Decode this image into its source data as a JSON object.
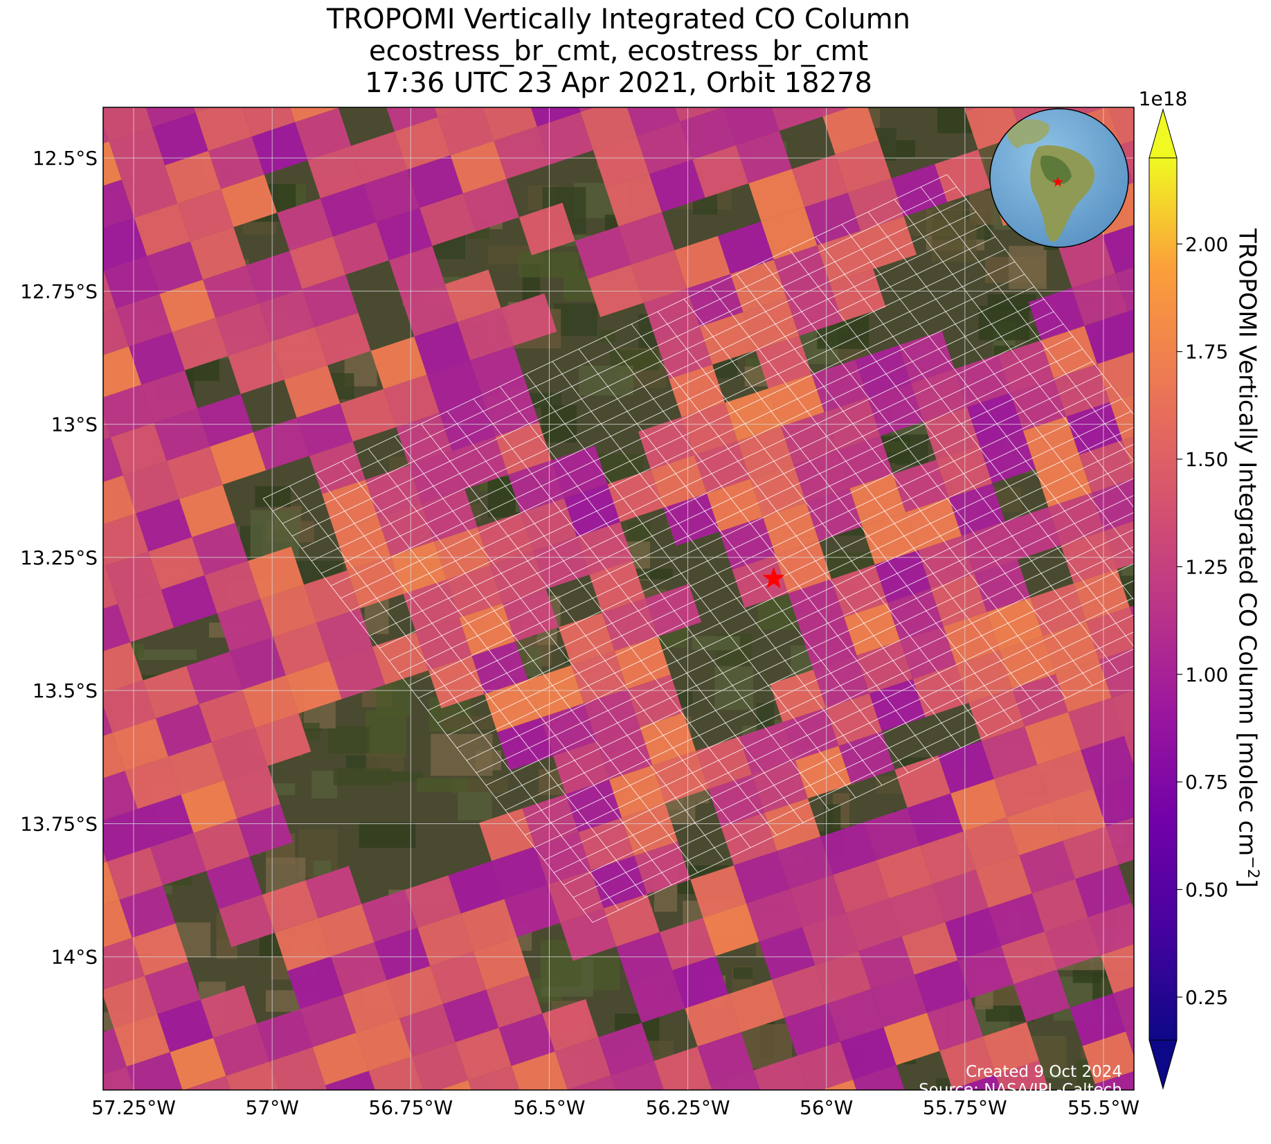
{
  "title": {
    "line1": "TROPOMI Vertically Integrated CO Column",
    "line2": "ecostress_br_cmt, ecostress_br_cmt",
    "line3": "17:36 UTC 23 Apr 2021, Orbit 18278"
  },
  "map": {
    "lon_range": [
      -57.305,
      -55.445
    ],
    "lat_range": [
      -12.405,
      -14.25
    ],
    "lon_ticks": [
      {
        "value": -57.25,
        "label": "57.25°W"
      },
      {
        "value": -57.0,
        "label": "57°W"
      },
      {
        "value": -56.75,
        "label": "56.75°W"
      },
      {
        "value": -56.5,
        "label": "56.5°W"
      },
      {
        "value": -56.25,
        "label": "56.25°W"
      },
      {
        "value": -56.0,
        "label": "56°W"
      },
      {
        "value": -55.75,
        "label": "55.75°W"
      },
      {
        "value": -55.5,
        "label": "55.5°W"
      }
    ],
    "lat_ticks": [
      {
        "value": -12.5,
        "label": "12.5°S"
      },
      {
        "value": -12.75,
        "label": "12.75°S"
      },
      {
        "value": -13.0,
        "label": "13°S"
      },
      {
        "value": -13.25,
        "label": "13.25°S"
      },
      {
        "value": -13.5,
        "label": "13.5°S"
      },
      {
        "value": -13.75,
        "label": "13.75°S"
      },
      {
        "value": -14.0,
        "label": "14°S"
      }
    ],
    "site_marker": {
      "lon": -56.095,
      "lat": -13.29,
      "color": "#ff0000",
      "icon": "star-icon"
    },
    "basemap": "satellite imagery",
    "overlay": "ECOSTRESS footprint grid (white)",
    "inset_globe": {
      "icon": "globe-icon",
      "marker_icon": "star-icon",
      "marker_color": "#ff0000"
    }
  },
  "colorbar": {
    "label": "TROPOMI Vertically Integrated CO Column [molec cm",
    "label_sup": "−2",
    "label_close": "]",
    "multiplier": "1e18",
    "min": 0.15,
    "max": 2.2,
    "extend": "both",
    "colormap": "plasma",
    "ticks": [
      {
        "value": 0.25,
        "label": "0.25"
      },
      {
        "value": 0.5,
        "label": "0.50"
      },
      {
        "value": 0.75,
        "label": "0.75"
      },
      {
        "value": 1.0,
        "label": "1.00"
      },
      {
        "value": 1.25,
        "label": "1.25"
      },
      {
        "value": 1.5,
        "label": "1.50"
      },
      {
        "value": 1.75,
        "label": "1.75"
      },
      {
        "value": 2.0,
        "label": "2.00"
      }
    ]
  },
  "credits": {
    "created": "Created 9 Oct 2024",
    "source": "Source: NASA/JPL-Caltech"
  }
}
